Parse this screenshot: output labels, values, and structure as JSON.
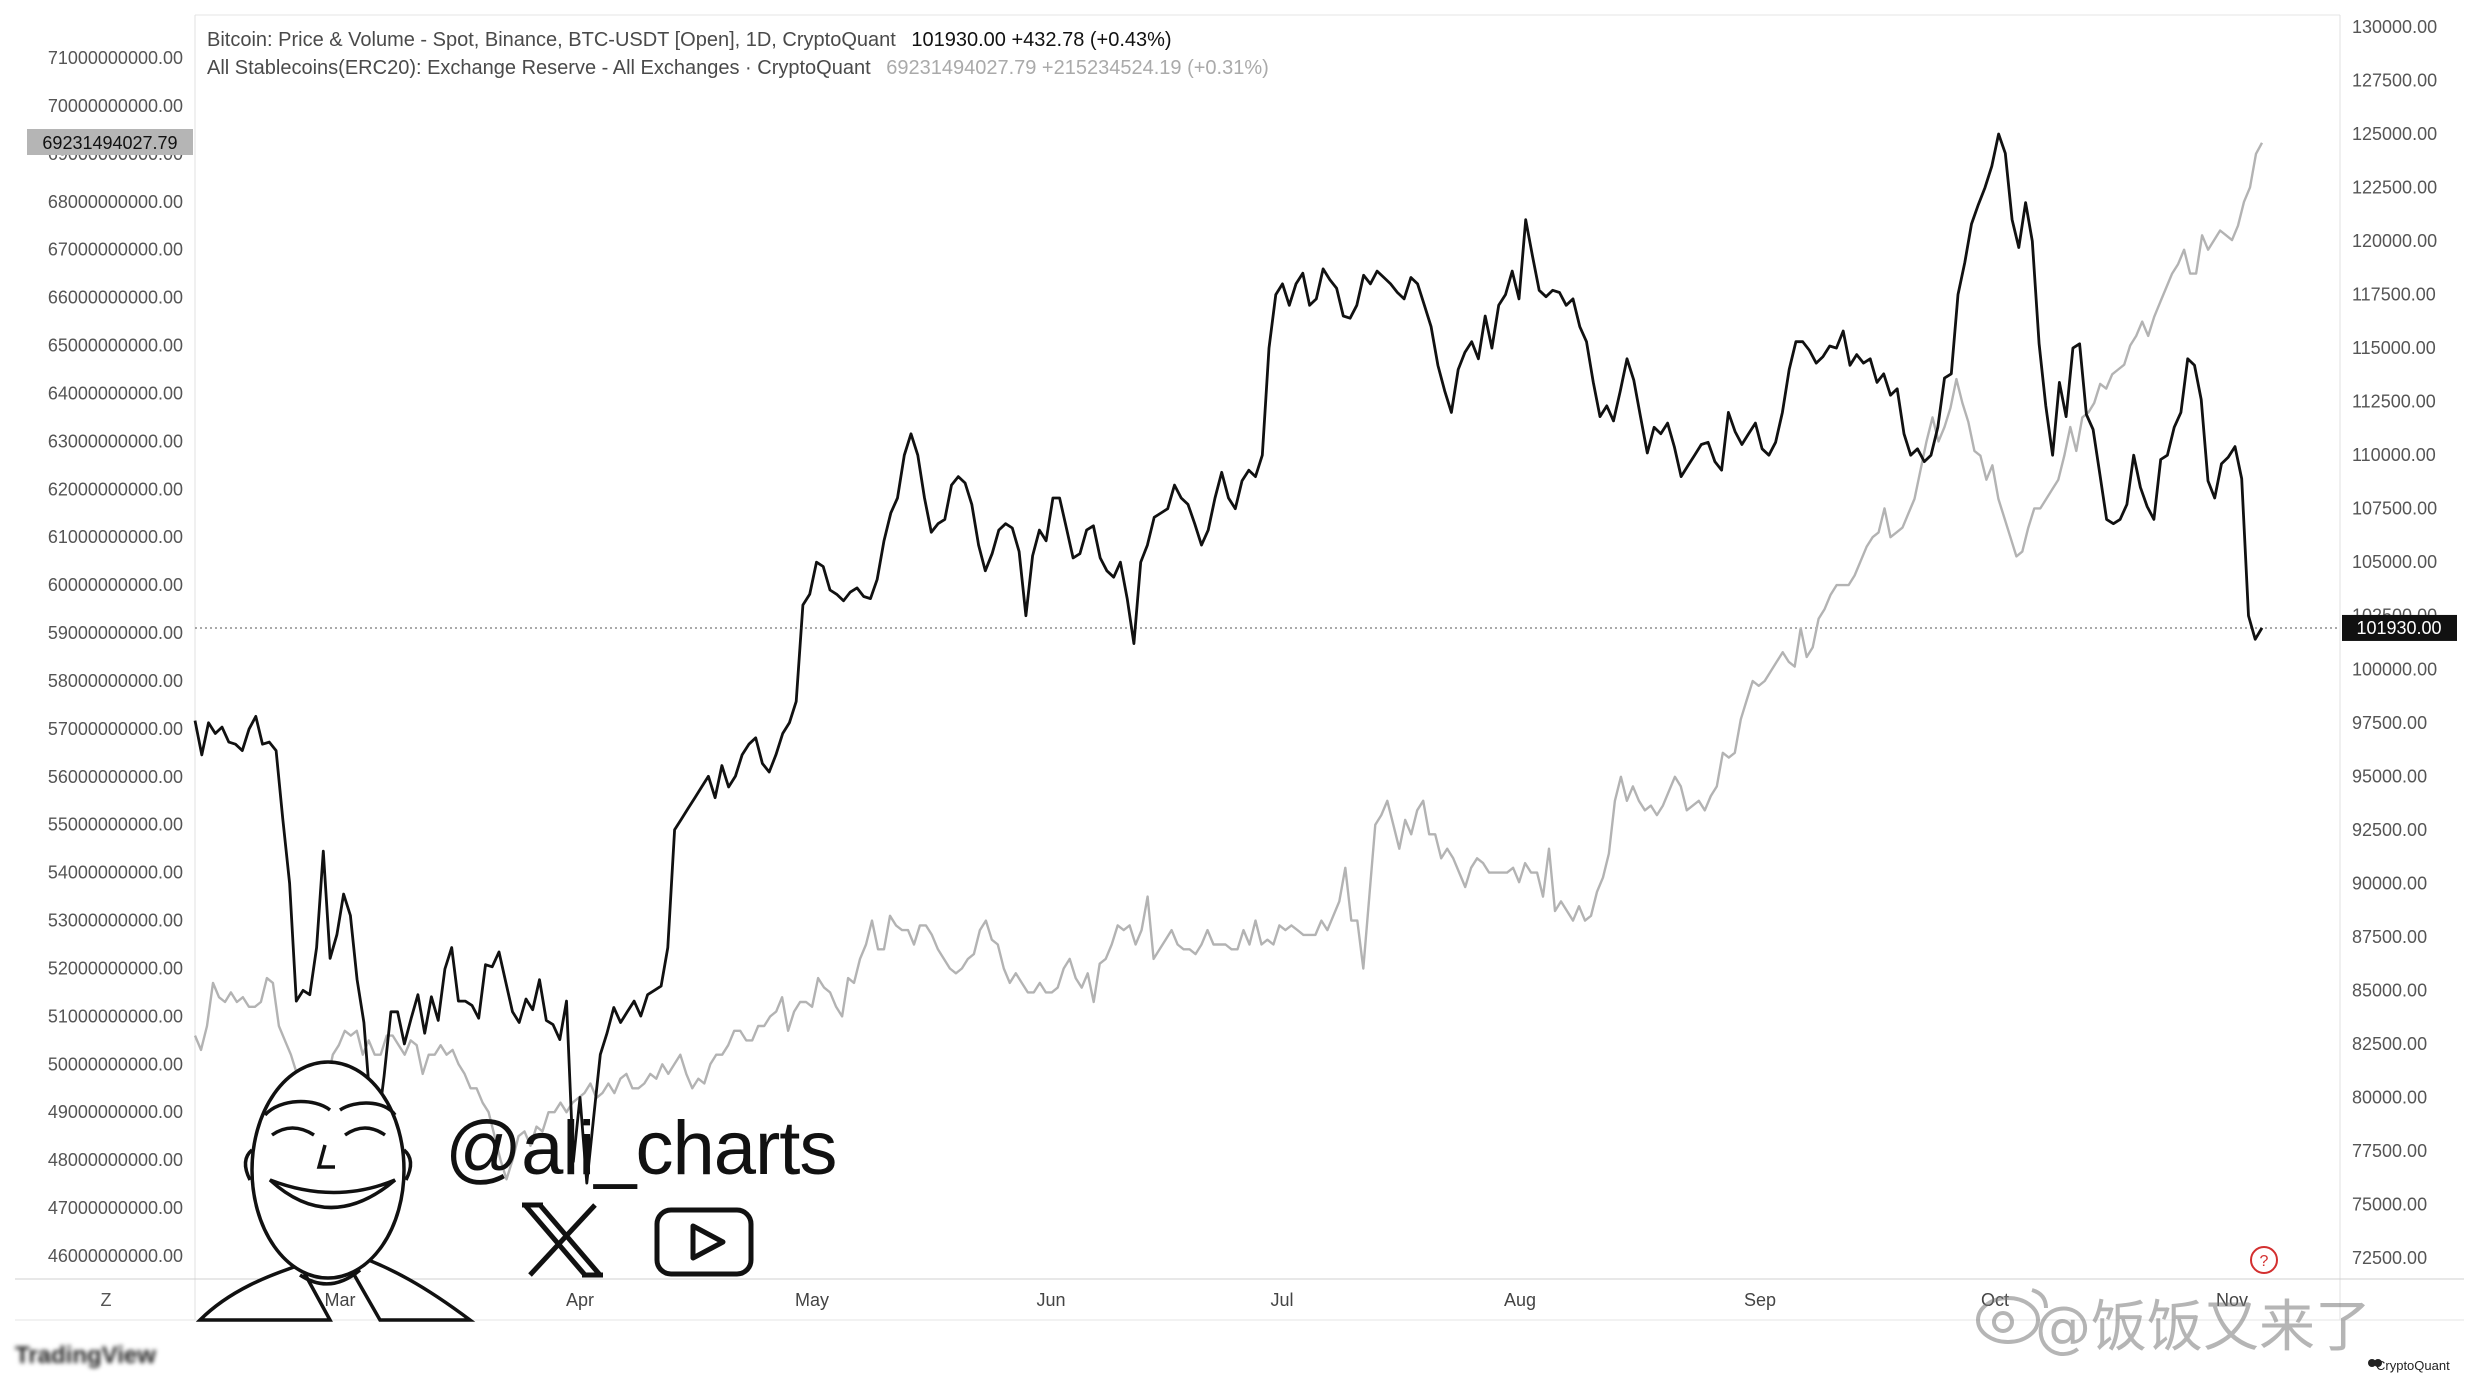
{
  "legend": {
    "line1_label": "Bitcoin: Price & Volume - Spot, Binance, BTC-USDT [Open], 1D, CryptoQuant",
    "line1_values": "101930.00  +432.78 (+0.43%)",
    "line2_label": "All Stablecoins(ERC20): Exchange Reserve - All Exchanges · CryptoQuant",
    "line2_values": "69231494027.79  +215234524.19 (+0.31%)"
  },
  "left_badge": "69231494027.79",
  "right_badge": "101930.00",
  "zoom_button": "Z",
  "help_icon": "?",
  "handle": "@ali_charts",
  "weibo_text": "@饭饭又来了",
  "footer_brand": "CryptoQuant",
  "footer_left": "TradingView",
  "colors": {
    "btc": "#111111",
    "stable": "#b3b3b3",
    "badge_dark": "#111111",
    "badge_grey": "#b5b5b5",
    "help": "#d32f2f"
  },
  "chart_data": {
    "type": "line",
    "x_ticks": [
      "Mar",
      "Apr",
      "May",
      "Jun",
      "Jul",
      "Aug",
      "Sep",
      "Oct",
      "Nov"
    ],
    "left_axis": {
      "min": 46000000000,
      "max": 71000000000,
      "ticks": [
        "71000000000.00",
        "70000000000.00",
        "69000000000.00",
        "68000000000.00",
        "67000000000.00",
        "66000000000.00",
        "65000000000.00",
        "64000000000.00",
        "63000000000.00",
        "62000000000.00",
        "61000000000.00",
        "60000000000.00",
        "59000000000.00",
        "58000000000.00",
        "57000000000.00",
        "56000000000.00",
        "55000000000.00",
        "54000000000.00",
        "53000000000.00",
        "52000000000.00",
        "51000000000.00",
        "50000000000.00",
        "49000000000.00",
        "48000000000.00",
        "47000000000.00",
        "46000000000.00"
      ]
    },
    "right_axis": {
      "min": 72500,
      "max": 130000,
      "ticks": [
        "130000.00",
        "127500.00",
        "125000.00",
        "122500.00",
        "120000.00",
        "117500.00",
        "115000.00",
        "112500.00",
        "110000.00",
        "107500.00",
        "105000.00",
        "102500.00",
        "100000.00",
        "97500.00",
        "95000.00",
        "92500.00",
        "90000.00",
        "87500.00",
        "85000.00",
        "82500.00",
        "80000.00",
        "77500.00",
        "75000.00",
        "72500.00"
      ]
    },
    "series": [
      {
        "name": "Bitcoin: Price & Volume - Spot, Binance, BTC-USDT [Open], 1D, CryptoQuant",
        "axis": "right",
        "values": [
          97600,
          96000,
          97500,
          97000,
          97300,
          96600,
          96500,
          96200,
          97200,
          97800,
          96500,
          96600,
          96200,
          93000,
          90000,
          84500,
          85000,
          84800,
          87000,
          91500,
          86500,
          87600,
          89500,
          88500,
          85500,
          83500,
          79500,
          78500,
          81000,
          84000,
          84000,
          82500,
          83700,
          84800,
          83000,
          84700,
          83600,
          86000,
          87000,
          84500,
          84500,
          84300,
          83700,
          86200,
          86100,
          86800,
          85400,
          84000,
          83500,
          84600,
          84100,
          85500,
          83600,
          83400,
          82700,
          84500,
          77000,
          80000,
          76000,
          79000,
          82000,
          83000,
          84200,
          83500,
          84000,
          84500,
          83800,
          84800,
          85000,
          85200,
          87000,
          92500,
          93000,
          93500,
          94000,
          94500,
          95000,
          94000,
          95500,
          94500,
          95000,
          96000,
          96500,
          96800,
          95600,
          95200,
          96000,
          97000,
          97500,
          98500,
          103000,
          103500,
          105000,
          104800,
          103700,
          103500,
          103200,
          103600,
          103800,
          103400,
          103300,
          104200,
          106000,
          107300,
          108000,
          110000,
          111000,
          110000,
          108000,
          106400,
          106800,
          107000,
          108600,
          109000,
          108700,
          107700,
          105800,
          104600,
          105400,
          106500,
          106800,
          106600,
          105500,
          102500,
          105300,
          106500,
          106000,
          108000,
          108000,
          106600,
          105200,
          105400,
          106500,
          106700,
          105200,
          104600,
          104300,
          105000,
          103300,
          101200,
          105000,
          105800,
          107100,
          107300,
          107500,
          108600,
          108000,
          107700,
          106800,
          105800,
          106500,
          108000,
          109200,
          108000,
          107500,
          108800,
          109300,
          109000,
          110000,
          115000,
          117500,
          118000,
          117000,
          118000,
          118500,
          117000,
          117300,
          118700,
          118200,
          117800,
          116500,
          116400,
          117000,
          118400,
          118000,
          118600,
          118300,
          118000,
          117600,
          117300,
          118300,
          118000,
          117000,
          116000,
          114200,
          113000,
          112000,
          114000,
          114800,
          115300,
          114500,
          116500,
          115000,
          117000,
          117500,
          118600,
          117300,
          121000,
          119300,
          117700,
          117400,
          117700,
          117600,
          117000,
          117300,
          116000,
          115300,
          113400,
          111800,
          112300,
          111600,
          113000,
          114500,
          113500,
          111800,
          110100,
          111300,
          111000,
          111500,
          110400,
          109000,
          109500,
          110000,
          110500,
          110600,
          109700,
          109300,
          112000,
          111100,
          110500,
          111000,
          111500,
          110300,
          110000,
          110600,
          112000,
          114000,
          115300,
          115300,
          114900,
          114300,
          114600,
          115100,
          115000,
          115800,
          114200,
          114700,
          114300,
          114500,
          113400,
          113800,
          112800,
          113100,
          111000,
          110000,
          110300,
          109700,
          110000,
          111300,
          113600,
          113800,
          117500,
          119000,
          120800,
          121700,
          122500,
          123500,
          125000,
          124100,
          121000,
          119700,
          121800,
          120000,
          115200,
          112300,
          110000,
          113400,
          111800,
          115000,
          115200,
          111900,
          111200,
          109100,
          107000,
          106800,
          107000,
          107700,
          110000,
          108500,
          107600,
          107000,
          109800,
          110000,
          111300,
          112000,
          114500,
          114200,
          112600,
          108800,
          108000,
          109600,
          109900,
          110400,
          108900,
          102500,
          101400,
          101930
        ]
      },
      {
        "name": "All Stablecoins(ERC20): Exchange Reserve - All Exchanges · CryptoQuant",
        "axis": "left",
        "values": [
          50600,
          50300,
          50800,
          51700,
          51400,
          51300,
          51500,
          51300,
          51400,
          51200,
          51200,
          51300,
          51800,
          51700,
          50800,
          50500,
          50200,
          49800,
          49500,
          49200,
          49800,
          49900,
          49600,
          50200,
          50400,
          50700,
          50600,
          50700,
          50200,
          50500,
          50200,
          50200,
          50600,
          50600,
          50400,
          50200,
          50500,
          50400,
          49800,
          50200,
          50200,
          50400,
          50200,
          50300,
          50000,
          49800,
          49500,
          49500,
          49200,
          49000,
          48500,
          48000,
          47600,
          48000,
          48500,
          48600,
          48300,
          48700,
          48600,
          49000,
          49000,
          49200,
          49000,
          49200,
          49300,
          49400,
          49600,
          49300,
          49400,
          49600,
          49400,
          49700,
          49800,
          49500,
          49500,
          49600,
          49800,
          49700,
          50000,
          49800,
          50000,
          50200,
          49800,
          49500,
          49700,
          49600,
          50000,
          50200,
          50200,
          50400,
          50700,
          50700,
          50500,
          50500,
          50800,
          50800,
          51000,
          51100,
          51400,
          50700,
          51100,
          51300,
          51300,
          51200,
          51800,
          51600,
          51500,
          51200,
          51000,
          51800,
          51700,
          52200,
          52500,
          53000,
          52400,
          52400,
          53100,
          52900,
          52800,
          52800,
          52500,
          52900,
          52900,
          52700,
          52400,
          52200,
          52000,
          51900,
          52000,
          52200,
          52300,
          52800,
          53000,
          52600,
          52500,
          52000,
          51700,
          51900,
          51700,
          51500,
          51500,
          51700,
          51500,
          51500,
          51600,
          52000,
          52200,
          51800,
          51600,
          51900,
          51300,
          52100,
          52200,
          52500,
          52900,
          52800,
          52900,
          52500,
          52800,
          53500,
          52200,
          52400,
          52600,
          52800,
          52500,
          52400,
          52400,
          52300,
          52500,
          52800,
          52500,
          52500,
          52500,
          52400,
          52400,
          52800,
          52500,
          53000,
          52500,
          52600,
          52500,
          52900,
          52800,
          52900,
          52800,
          52700,
          52700,
          52700,
          53000,
          52800,
          53100,
          53400,
          54100,
          53000,
          53000,
          52000,
          53500,
          55000,
          55200,
          55500,
          55000,
          54500,
          55100,
          54800,
          55300,
          55500,
          54800,
          54800,
          54300,
          54500,
          54300,
          54000,
          53700,
          54100,
          54300,
          54200,
          54000,
          54000,
          54000,
          54000,
          54100,
          53800,
          54200,
          54000,
          54000,
          53500,
          54500,
          53200,
          53400,
          53200,
          53000,
          53300,
          53000,
          53100,
          53600,
          53900,
          54400,
          55500,
          56000,
          55500,
          55800,
          55500,
          55300,
          55400,
          55200,
          55400,
          55700,
          56000,
          55800,
          55300,
          55400,
          55500,
          55300,
          55600,
          55800,
          56500,
          56400,
          56500,
          57200,
          57600,
          58000,
          57900,
          58000,
          58200,
          58400,
          58600,
          58400,
          58300,
          59100,
          58500,
          58700,
          59300,
          59500,
          59800,
          60000,
          60000,
          60000,
          60200,
          60500,
          60800,
          61000,
          61100,
          61600,
          61000,
          61100,
          61200,
          61500,
          61800,
          62400,
          63000,
          63500,
          63000,
          63300,
          63700,
          64300,
          63800,
          63400,
          62800,
          62700,
          62200,
          62500,
          61800,
          61400,
          61000,
          60600,
          60700,
          61200,
          61600,
          61600,
          61800,
          62000,
          62200,
          62700,
          63300,
          62800,
          63500,
          63600,
          63800,
          64200,
          64100,
          64400,
          64500,
          64600,
          65000,
          65200,
          65500,
          65200,
          65600,
          65900,
          66200,
          66500,
          66700,
          67000,
          66500,
          66500,
          67300,
          67000,
          67200,
          67400,
          67300,
          67200,
          67500,
          68000,
          68300,
          69000,
          69231
        ]
      }
    ]
  }
}
